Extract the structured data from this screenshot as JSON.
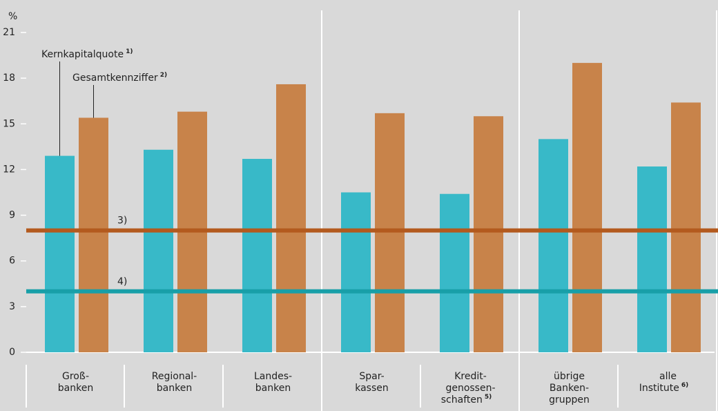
{
  "chart_data": {
    "type": "bar",
    "y_label": "%",
    "categories": [
      [
        "Groß-",
        "banken"
      ],
      [
        "Regional-",
        "banken"
      ],
      [
        "Landes-",
        "banken"
      ],
      [
        "Spar-",
        "kassen"
      ],
      [
        "Kredit-",
        "genossen-",
        "schaften"
      ],
      [
        "übrige",
        "Banken-",
        "gruppen"
      ],
      [
        "alle",
        "Institute"
      ]
    ],
    "category_notes": [
      null,
      null,
      null,
      null,
      "5)",
      null,
      "6)"
    ],
    "series": [
      {
        "name": "Kernkapitalquote",
        "note": "1)",
        "color": "#38b9c8",
        "values": [
          12.9,
          13.3,
          12.7,
          10.5,
          10.4,
          14.0,
          12.2
        ]
      },
      {
        "name": "Gesamtkennziffer",
        "note": "2)",
        "color": "#c8834a",
        "values": [
          15.4,
          15.8,
          17.6,
          15.7,
          15.5,
          19.0,
          16.4
        ]
      }
    ],
    "reference_lines": [
      {
        "value": 8,
        "label": "3)",
        "color": "#b35a1e"
      },
      {
        "value": 4,
        "label": "4)",
        "color": "#189fa8"
      }
    ],
    "ylim": [
      0,
      21
    ],
    "yticks": [
      0,
      3,
      6,
      9,
      12,
      15,
      18,
      21
    ]
  }
}
